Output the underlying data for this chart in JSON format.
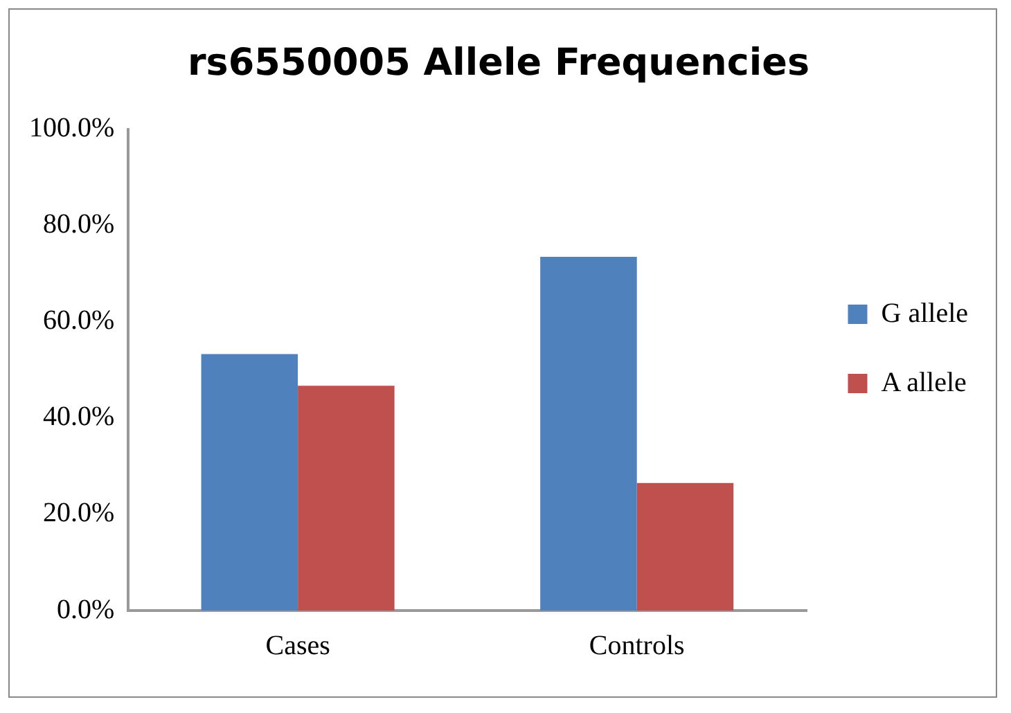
{
  "chart_data": {
    "type": "bar",
    "title": "rs6550005 Allele Frequencies",
    "categories": [
      "Cases",
      "Controls"
    ],
    "series": [
      {
        "name": "G allele",
        "color": "#4f81bd",
        "values": [
          53.3,
          73.5
        ]
      },
      {
        "name": "A allele",
        "color": "#c0504d",
        "values": [
          46.7,
          26.5
        ]
      }
    ],
    "ylim": [
      0,
      100
    ],
    "yticks": [
      {
        "value": 0,
        "label": "0.0%"
      },
      {
        "value": 20,
        "label": "20.0%"
      },
      {
        "value": 40,
        "label": "40.0%"
      },
      {
        "value": 60,
        "label": "60.0%"
      },
      {
        "value": 80,
        "label": "80.0%"
      },
      {
        "value": 100,
        "label": "100.0%"
      }
    ],
    "grid": false,
    "legend": "right"
  }
}
